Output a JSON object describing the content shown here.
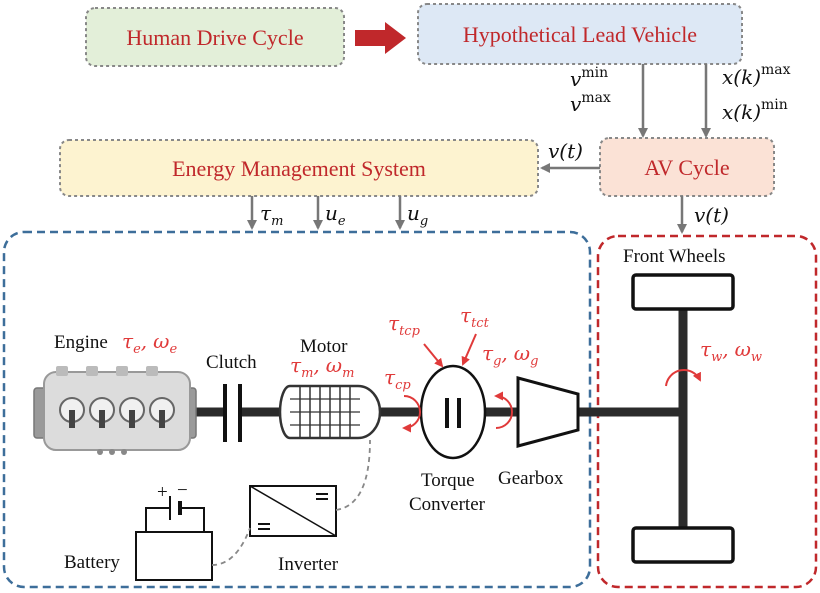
{
  "boxes": {
    "human_drive_cycle": "Human Drive Cycle",
    "lead_vehicle": "Hypothetical Lead Vehicle",
    "energy_management": "Energy Management System",
    "av_cycle": "AV Cycle"
  },
  "signals": {
    "v_var": "v",
    "x_var": "x(k)",
    "min": "min",
    "max": "max",
    "v_of_t": "v(t)",
    "tau": "τ",
    "u": "u",
    "omega": "ω",
    "sub_m": "m",
    "sub_e": "e",
    "sub_g": "g",
    "sub_w": "w",
    "sub_cp": "cp",
    "sub_tcp": "tcp",
    "sub_tct": "tct",
    "comma": ","
  },
  "components": {
    "engine": "Engine",
    "clutch": "Clutch",
    "motor": "Motor",
    "torque": "Torque",
    "converter": "Converter",
    "gearbox": "Gearbox",
    "front_wheels": "Front Wheels",
    "battery": "Battery",
    "inverter": "Inverter",
    "plus": "+",
    "minus": "−"
  },
  "colors": {
    "green_fill": "#e3efd9",
    "blue_fill": "#dde8f5",
    "yellow_fill": "#fdf3d0",
    "orange_fill": "#fbe2d6",
    "blue_dash": "#3d6e9a",
    "red_dash": "#c0282b",
    "signal_red": "#e03a3a",
    "flow_arrow": "#c0282b"
  }
}
